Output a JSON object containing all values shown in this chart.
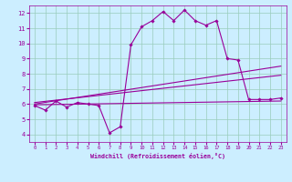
{
  "bg_color": "#cceeff",
  "grid_color": "#aaddcc",
  "line_color": "#990099",
  "xlabel": "Windchill (Refroidissement éolien,°C)",
  "xlim": [
    -0.5,
    23.5
  ],
  "ylim": [
    3.5,
    12.5
  ],
  "xticks": [
    0,
    1,
    2,
    3,
    4,
    5,
    6,
    7,
    8,
    9,
    10,
    11,
    12,
    13,
    14,
    15,
    16,
    17,
    18,
    19,
    20,
    21,
    22,
    23
  ],
  "yticks": [
    4,
    5,
    6,
    7,
    8,
    9,
    10,
    11,
    12
  ],
  "series1_x": [
    0,
    1,
    2,
    3,
    4,
    5,
    6,
    7,
    8,
    9,
    10,
    11,
    12,
    13,
    14,
    15,
    16,
    17,
    18,
    19,
    20,
    21,
    22,
    23
  ],
  "series1_y": [
    5.9,
    5.6,
    6.2,
    5.8,
    6.1,
    6.0,
    5.9,
    4.1,
    4.5,
    9.9,
    11.1,
    11.5,
    12.1,
    11.5,
    12.2,
    11.5,
    11.2,
    11.5,
    9.0,
    8.9,
    6.3,
    6.3,
    6.3,
    6.4
  ],
  "series2_x": [
    0,
    23
  ],
  "series2_y": [
    6.0,
    8.5
  ],
  "series3_x": [
    0,
    23
  ],
  "series3_y": [
    6.1,
    7.9
  ],
  "series4_x": [
    0,
    23
  ],
  "series4_y": [
    5.95,
    6.2
  ]
}
